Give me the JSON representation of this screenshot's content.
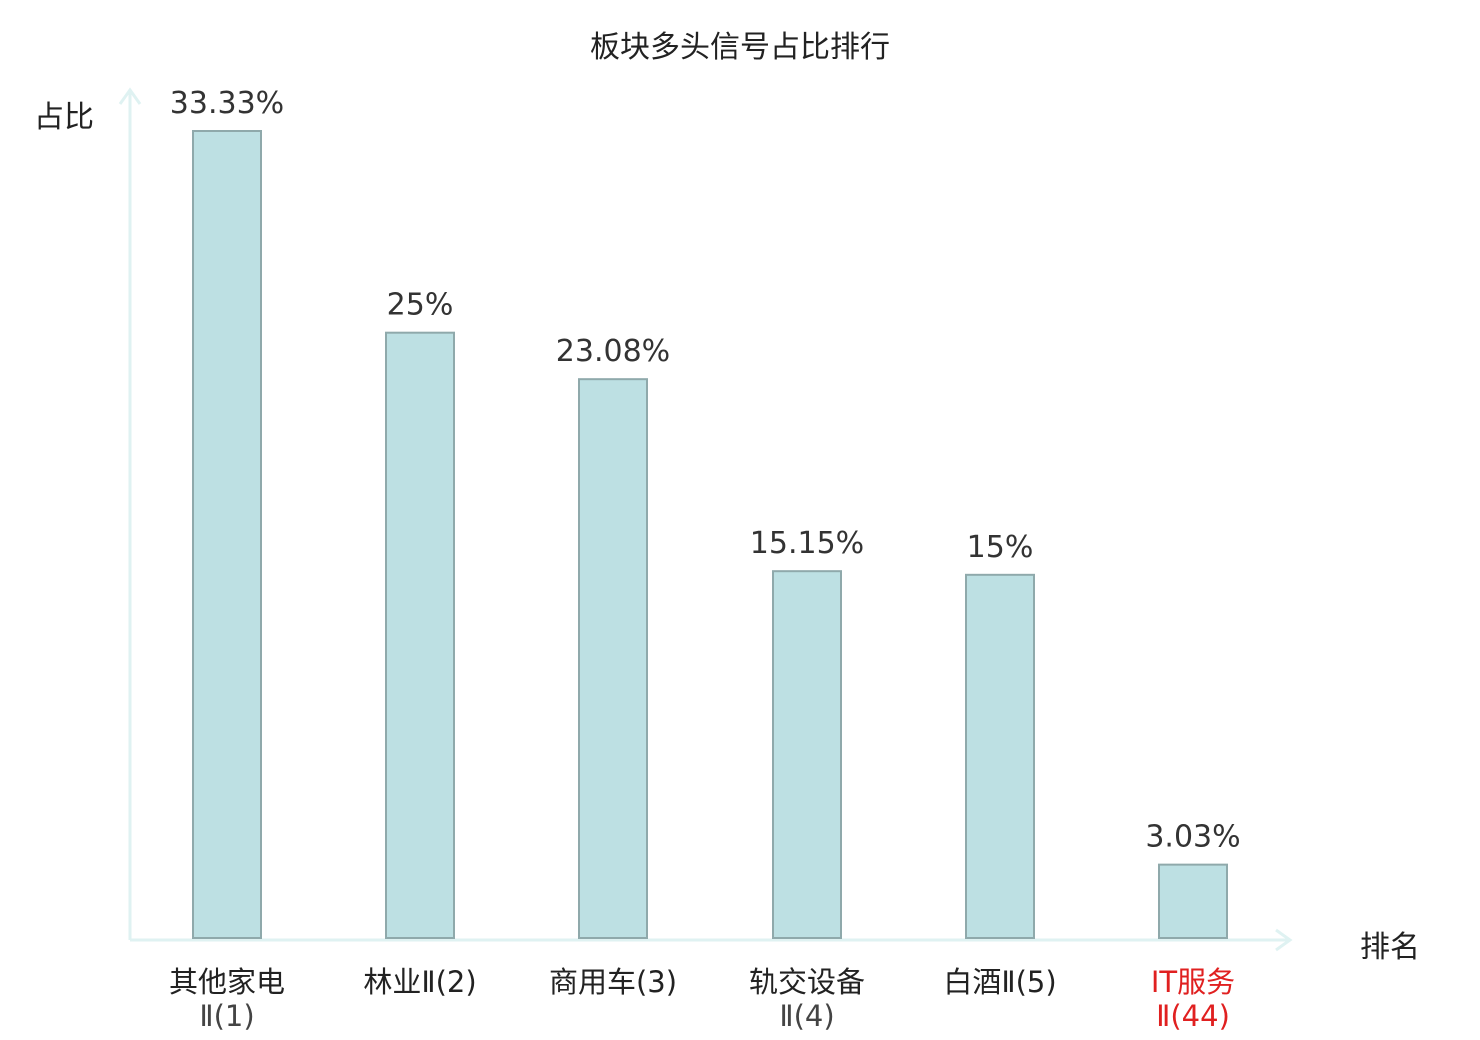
{
  "title": "板块多头信号占比排行",
  "colors": {
    "bar_fill": "#bde0e3",
    "bar_stroke": "#8fa9ab",
    "axis": "#dff2f2",
    "highlight": "#e02020"
  },
  "chart_data": {
    "type": "bar",
    "title": "板块多头信号占比排行",
    "xlabel": "排名",
    "ylabel": "占比",
    "ylim": [
      0,
      36
    ],
    "grid": false,
    "categories": [
      {
        "line1": "其他家电",
        "line2": "Ⅱ(1)",
        "highlight": false
      },
      {
        "line1": "林业Ⅱ(2)",
        "line2": "",
        "highlight": false
      },
      {
        "line1": "商用车(3)",
        "line2": "",
        "highlight": false
      },
      {
        "line1": "轨交设备",
        "line2": "Ⅱ(4)",
        "highlight": false
      },
      {
        "line1": "白酒Ⅱ(5)",
        "line2": "",
        "highlight": false
      },
      {
        "line1": "IT服务",
        "line2": "Ⅱ(44)",
        "highlight": true
      }
    ],
    "values": [
      33.33,
      25,
      23.08,
      15.15,
      15,
      3.03
    ],
    "value_labels": [
      "33.33%",
      "25%",
      "23.08%",
      "15.15%",
      "15%",
      "3.03%"
    ]
  }
}
